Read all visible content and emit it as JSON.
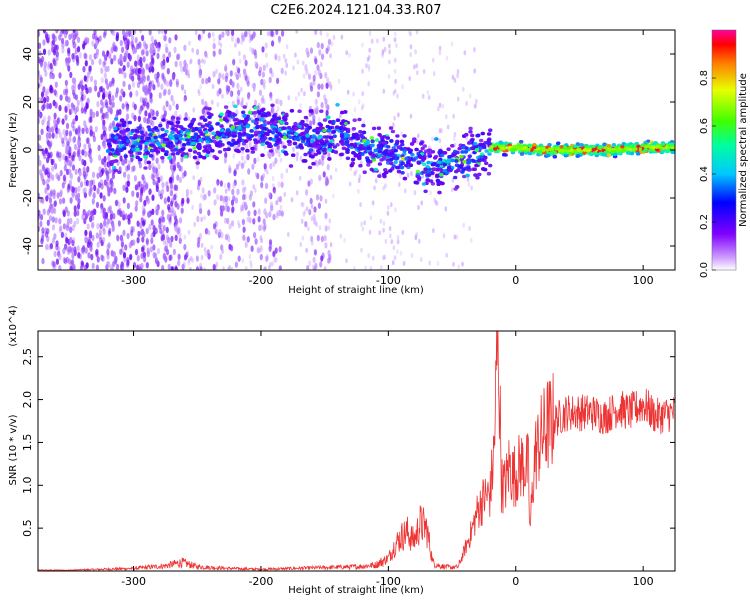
{
  "title": "C2E6.2024.121.04.33.R07",
  "chart_data": [
    {
      "type": "heatmap",
      "xlabel": "Height of straight line (km)",
      "ylabel": "Frequency (Hz)",
      "xlim": [
        -375,
        125
      ],
      "ylim": [
        -50,
        50
      ],
      "xticks": [
        -300,
        -200,
        -100,
        0,
        100
      ],
      "xtick_labels": [
        "-300",
        "-200",
        "-100",
        "0",
        "100"
      ],
      "yticks": [
        -40,
        -20,
        0,
        20,
        40
      ],
      "ytick_labels": [
        "-40",
        "-20",
        "0",
        "20",
        "40"
      ],
      "colorbar": {
        "label": "Normalized spectral amplitude",
        "range": [
          0,
          1
        ],
        "ticks": [
          0.0,
          0.2,
          0.4,
          0.6,
          0.8
        ],
        "tick_labels": [
          "0.0",
          "0.2",
          "0.4",
          "0.6",
          "0.8"
        ]
      },
      "ridge_frequency": [
        [
          -375,
          0
        ],
        [
          -310,
          3
        ],
        [
          -275,
          4
        ],
        [
          -250,
          5
        ],
        [
          -210,
          10
        ],
        [
          -190,
          8
        ],
        [
          -175,
          6
        ],
        [
          -160,
          5
        ],
        [
          -140,
          7
        ],
        [
          -120,
          2
        ],
        [
          -100,
          -2
        ],
        [
          -85,
          -4
        ],
        [
          -70,
          -7
        ],
        [
          -55,
          -6
        ],
        [
          -40,
          -3
        ],
        [
          -20,
          1
        ],
        [
          0,
          1
        ],
        [
          25,
          0
        ],
        [
          50,
          0
        ],
        [
          75,
          0
        ],
        [
          100,
          1
        ],
        [
          125,
          1
        ]
      ],
      "grid": false
    },
    {
      "type": "line",
      "xlabel": "Height of straight line (km)",
      "ylabel": "SNR (10 * v/v)",
      "scale_label": "(x10^4)",
      "xlim": [
        -375,
        125
      ],
      "ylim": [
        0,
        2.8
      ],
      "xticks": [
        -300,
        -200,
        -100,
        0,
        100
      ],
      "xtick_labels": [
        "-300",
        "-200",
        "-100",
        "0",
        "100"
      ],
      "yticks": [
        0.5,
        1.0,
        1.5,
        2.0,
        2.5
      ],
      "ytick_labels": [
        "0.5",
        "1.0",
        "1.5",
        "2.0",
        "2.5"
      ],
      "color": "#ee3333",
      "x": [
        -375,
        -350,
        -325,
        -300,
        -275,
        -262,
        -250,
        -225,
        -200,
        -175,
        -150,
        -125,
        -110,
        -100,
        -95,
        -90,
        -85,
        -80,
        -75,
        -70,
        -65,
        -60,
        -55,
        -50,
        -45,
        -40,
        -35,
        -30,
        -25,
        -20,
        -17,
        -14,
        -11,
        -8,
        -5,
        -2,
        0,
        5,
        10,
        11,
        15,
        20,
        25,
        30,
        40,
        50,
        60,
        70,
        80,
        90,
        100,
        110,
        125
      ],
      "y": [
        0.01,
        0.01,
        0.02,
        0.03,
        0.06,
        0.1,
        0.05,
        0.03,
        0.02,
        0.03,
        0.04,
        0.05,
        0.07,
        0.15,
        0.3,
        0.4,
        0.45,
        0.35,
        0.55,
        0.5,
        0.1,
        0.06,
        0.05,
        0.04,
        0.05,
        0.25,
        0.45,
        0.7,
        0.85,
        0.9,
        1.4,
        2.8,
        1.0,
        1.0,
        1.25,
        1.1,
        1.15,
        1.25,
        1.2,
        0.45,
        1.35,
        1.55,
        1.7,
        1.75,
        1.85,
        1.85,
        1.85,
        1.8,
        1.9,
        1.85,
        1.95,
        1.8,
        1.85
      ],
      "grid": false
    }
  ]
}
